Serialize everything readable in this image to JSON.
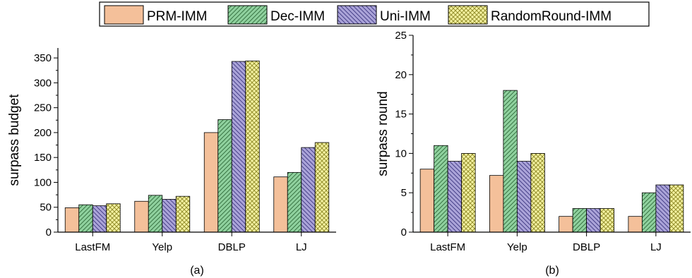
{
  "legend": [
    {
      "name": "PRM-IMM",
      "fill": "#f4c09a",
      "pattern": "none"
    },
    {
      "name": "Dec-IMM",
      "fill": "#8fd19e",
      "pattern": "diag-right"
    },
    {
      "name": "Uni-IMM",
      "fill": "#aaa3d8",
      "pattern": "diag-left"
    },
    {
      "name": "RandomRound-IMM",
      "fill": "#f3f1a0",
      "pattern": "cross"
    }
  ],
  "chart_data": [
    {
      "type": "bar",
      "caption": "(a)",
      "ylabel": "surpass budget",
      "xlabel": "",
      "categories": [
        "LastFM",
        "Yelp",
        "DBLP",
        "LJ"
      ],
      "ylim": [
        0,
        370
      ],
      "yticks": [
        0,
        50,
        100,
        150,
        200,
        250,
        300,
        350
      ],
      "series": [
        {
          "name": "PRM-IMM",
          "values": [
            49,
            62,
            200,
            111
          ]
        },
        {
          "name": "Dec-IMM",
          "values": [
            55,
            74,
            226,
            120
          ]
        },
        {
          "name": "Uni-IMM",
          "values": [
            53,
            66,
            343,
            170
          ]
        },
        {
          "name": "RandomRound-IMM",
          "values": [
            57,
            72,
            344,
            180
          ]
        }
      ]
    },
    {
      "type": "bar",
      "caption": "(b)",
      "ylabel": "surpass round",
      "xlabel": "",
      "categories": [
        "LastFM",
        "Yelp",
        "DBLP",
        "LJ"
      ],
      "ylim": [
        0,
        25
      ],
      "yticks": [
        0,
        5,
        10,
        15,
        20,
        25
      ],
      "series": [
        {
          "name": "PRM-IMM",
          "values": [
            8,
            7.2,
            2,
            2
          ]
        },
        {
          "name": "Dec-IMM",
          "values": [
            11,
            18,
            3,
            5
          ]
        },
        {
          "name": "Uni-IMM",
          "values": [
            9,
            9,
            3,
            6
          ]
        },
        {
          "name": "RandomRound-IMM",
          "values": [
            10,
            10,
            3,
            6
          ]
        }
      ]
    }
  ]
}
